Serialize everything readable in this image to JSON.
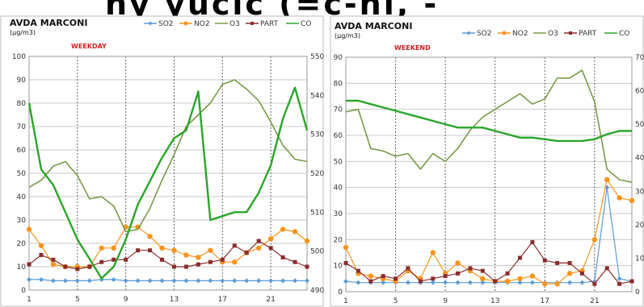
{
  "banner_text": "ny yucic    (=c-ni, -",
  "colors": {
    "SO2": "#5b9bd5",
    "NO2": "#f7941d",
    "O3": "#7a9a4a",
    "PART": "#8b2c2c",
    "CO": "#2aa52a",
    "subtitle": "#cc2222",
    "grid": "#c8c8c8",
    "divider": "#666666"
  },
  "chart_data": [
    {
      "type": "line",
      "title": "AVDA MARCONI",
      "unit": "(µg/m3)",
      "subtitle": "WEEKDAY",
      "legend": [
        "SO2",
        "NO2",
        "O3",
        "PART",
        "CO"
      ],
      "x_ticks": [
        "1",
        "5",
        "9",
        "13",
        "17",
        "21"
      ],
      "xlim": [
        1,
        24
      ],
      "ylim": [
        0,
        100
      ],
      "y_ticks": [
        "0",
        "10",
        "20",
        "30",
        "40",
        "50",
        "60",
        "70",
        "80",
        "90",
        "100"
      ],
      "y2lim": [
        490,
        550
      ],
      "y2_ticks": [
        "490",
        "500",
        "510",
        "520",
        "530",
        "540",
        "550"
      ],
      "series": [
        {
          "name": "SO2",
          "axis": "left",
          "marker": "diamond",
          "x": [
            1,
            2,
            3,
            4,
            5,
            6,
            7,
            8,
            9,
            10,
            11,
            12,
            13,
            14,
            15,
            16,
            17,
            18,
            19,
            20,
            21,
            22,
            23,
            24
          ],
          "y": [
            4.5,
            4.5,
            4,
            4,
            4,
            4,
            4.5,
            4.5,
            4,
            4,
            4,
            4,
            4,
            4,
            4,
            4,
            4,
            4,
            4,
            4,
            4,
            4,
            4,
            4
          ]
        },
        {
          "name": "NO2",
          "axis": "left",
          "marker": "circle",
          "x": [
            1,
            2,
            3,
            4,
            5,
            6,
            7,
            8,
            9,
            10,
            11,
            12,
            13,
            14,
            15,
            16,
            17,
            18,
            19,
            20,
            21,
            22,
            23,
            24
          ],
          "y": [
            26,
            19,
            11,
            10,
            10,
            10,
            18,
            18,
            27,
            27,
            23,
            18,
            17,
            15,
            14,
            17,
            12,
            12,
            16,
            18,
            22,
            26,
            25,
            21
          ]
        },
        {
          "name": "O3",
          "axis": "left",
          "marker": "none",
          "x": [
            1,
            2,
            3,
            4,
            5,
            6,
            7,
            8,
            9,
            10,
            11,
            12,
            13,
            14,
            15,
            16,
            17,
            18,
            19,
            20,
            21,
            22,
            23,
            24
          ],
          "y": [
            44,
            47,
            53,
            55,
            49,
            39,
            40,
            36,
            25,
            26,
            35,
            47,
            58,
            70,
            75,
            80,
            88,
            90,
            86,
            81,
            72,
            62,
            56,
            55
          ]
        },
        {
          "name": "PART",
          "axis": "left",
          "marker": "square",
          "x": [
            1,
            2,
            3,
            4,
            5,
            6,
            7,
            8,
            9,
            10,
            11,
            12,
            13,
            14,
            15,
            16,
            17,
            18,
            19,
            20,
            21,
            22,
            23,
            24
          ],
          "y": [
            11,
            15,
            13,
            10,
            9,
            10,
            12,
            13,
            13,
            17,
            17,
            13,
            10,
            10,
            11,
            12,
            13,
            19,
            16,
            21,
            18,
            14,
            12,
            10
          ]
        },
        {
          "name": "CO",
          "axis": "right",
          "marker": "none",
          "x": [
            1,
            2,
            3,
            4,
            5,
            6,
            7,
            8,
            9,
            10,
            11,
            12,
            13,
            14,
            15,
            16,
            17,
            18,
            19,
            20,
            21,
            22,
            23,
            24
          ],
          "y": [
            538,
            521,
            517,
            510,
            503,
            498,
            493,
            496,
            503,
            512,
            518,
            524,
            529,
            531,
            541,
            508,
            509,
            510,
            510,
            515,
            522,
            534,
            542,
            531
          ]
        }
      ]
    },
    {
      "type": "line",
      "title": "AVDA MARCONI",
      "unit": "(µg/m3)",
      "subtitle": "WEEKEND",
      "legend": [
        "SO2",
        "NO2",
        "O3",
        "PART",
        "CO"
      ],
      "x_ticks": [
        "1",
        "5",
        "9",
        "13",
        "17",
        "21"
      ],
      "xlim": [
        1,
        24
      ],
      "ylim": [
        0,
        90
      ],
      "y_ticks": [
        "0",
        "10",
        "20",
        "30",
        "40",
        "50",
        "60",
        "70",
        "80",
        "90"
      ],
      "y2lim": [
        0,
        70
      ],
      "y2_ticks": [
        "0",
        "10",
        "20",
        "30",
        "40",
        "50",
        "60",
        "70"
      ],
      "series": [
        {
          "name": "SO2",
          "axis": "left",
          "marker": "diamond",
          "x": [
            1,
            2,
            3,
            4,
            5,
            6,
            7,
            8,
            9,
            10,
            11,
            12,
            13,
            14,
            15,
            16,
            17,
            18,
            19,
            20,
            21,
            22,
            23,
            24
          ],
          "y": [
            4,
            3.5,
            3.5,
            3.5,
            3.5,
            3.5,
            3.5,
            3.5,
            3.5,
            3.5,
            3.5,
            3.5,
            3.5,
            3.5,
            3.5,
            3.5,
            3.5,
            3.5,
            3.5,
            3.5,
            4,
            40,
            5,
            4
          ]
        },
        {
          "name": "NO2",
          "axis": "left",
          "marker": "circle",
          "x": [
            1,
            2,
            3,
            4,
            5,
            6,
            7,
            8,
            9,
            10,
            11,
            12,
            13,
            14,
            15,
            16,
            17,
            18,
            19,
            20,
            21,
            22,
            23,
            24
          ],
          "y": [
            17,
            7,
            6,
            5,
            4,
            8,
            5,
            15,
            7,
            11,
            8,
            5,
            4,
            4,
            5,
            6,
            3,
            3,
            7,
            8,
            20,
            43,
            36,
            35
          ]
        },
        {
          "name": "O3",
          "axis": "left",
          "marker": "none",
          "x": [
            1,
            2,
            3,
            4,
            5,
            6,
            7,
            8,
            9,
            10,
            11,
            12,
            13,
            14,
            15,
            16,
            17,
            18,
            19,
            20,
            21,
            22,
            23,
            24
          ],
          "y": [
            69,
            70,
            55,
            54,
            52,
            53,
            47,
            53,
            50,
            55,
            62,
            67,
            70,
            73,
            76,
            72,
            74,
            82,
            82,
            85,
            73,
            47,
            43,
            42
          ]
        },
        {
          "name": "PART",
          "axis": "left",
          "marker": "square",
          "x": [
            1,
            2,
            3,
            4,
            5,
            6,
            7,
            8,
            9,
            10,
            11,
            12,
            13,
            14,
            15,
            16,
            17,
            18,
            19,
            20,
            21,
            22,
            23,
            24
          ],
          "y": [
            11,
            8,
            4,
            6,
            5,
            9,
            4,
            5,
            6,
            7,
            9,
            8,
            4,
            7,
            13,
            19,
            12,
            11,
            11,
            7,
            3,
            9,
            3,
            4
          ]
        },
        {
          "name": "CO",
          "axis": "right",
          "marker": "none",
          "x": [
            1,
            2,
            3,
            4,
            5,
            6,
            7,
            8,
            9,
            10,
            11,
            12,
            13,
            14,
            15,
            16,
            17,
            18,
            19,
            20,
            21,
            22,
            23,
            24
          ],
          "y": [
            57,
            57,
            56,
            55,
            54,
            53,
            52,
            51,
            50,
            49,
            49,
            49,
            48,
            47,
            46,
            46,
            45.5,
            45,
            45,
            45,
            45.5,
            47,
            48,
            48
          ]
        }
      ]
    }
  ]
}
